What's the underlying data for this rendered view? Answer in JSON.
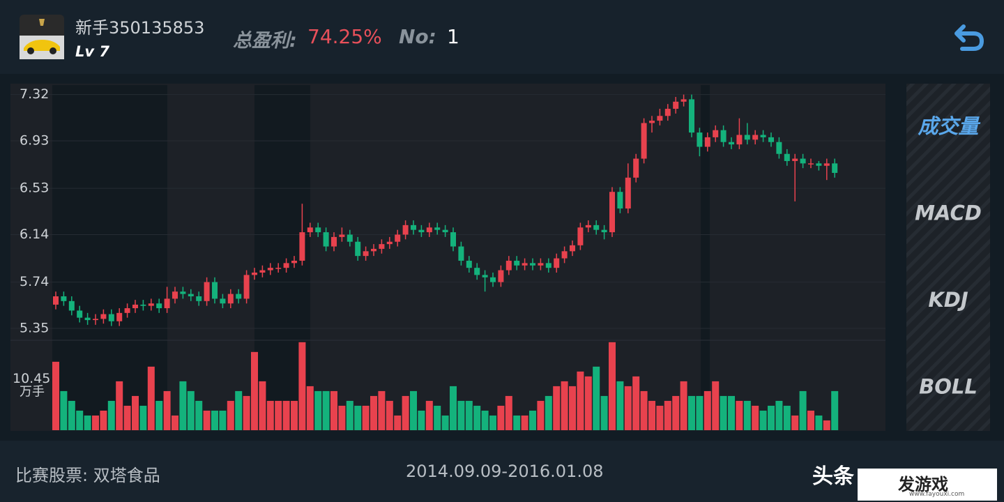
{
  "header": {
    "username": "新手350135853",
    "level": "Lv 7",
    "profit_label": "总盈利:",
    "profit_value": "74.25%",
    "no_label": "No:",
    "no_value": "1"
  },
  "side_tabs": [
    "成交量",
    "MACD",
    "KDJ",
    "BOLL"
  ],
  "footer": {
    "stock": "比赛股票: 双塔食品",
    "period": "2014.09.09-2016.01.08"
  },
  "watermark": {
    "source": "头条",
    "site": "发游戏",
    "url": "www.fayouxi.com"
  },
  "chart_data": {
    "type": "candlestick",
    "up_color": "#e8424e",
    "down_color": "#14b27c",
    "ylim": [
      5.25,
      7.4
    ],
    "yticks": [
      7.32,
      6.93,
      6.53,
      6.14,
      5.74,
      5.35
    ],
    "grid": true,
    "open": [
      5.55,
      5.62,
      5.58,
      5.5,
      5.44,
      5.42,
      5.43,
      5.47,
      5.41,
      5.48,
      5.52,
      5.55,
      5.54,
      5.56,
      5.52,
      5.6,
      5.66,
      5.64,
      5.62,
      5.58,
      5.74,
      5.6,
      5.56,
      5.64,
      5.6,
      5.8,
      5.82,
      5.84,
      5.86,
      5.86,
      5.9,
      5.92,
      6.16,
      6.2,
      6.16,
      6.04,
      6.12,
      6.14,
      6.08,
      5.96,
      6.0,
      6.02,
      6.06,
      6.08,
      6.14,
      6.22,
      6.18,
      6.16,
      6.2,
      6.18,
      6.16,
      6.04,
      5.92,
      5.86,
      5.8,
      5.78,
      5.74,
      5.84,
      5.92,
      5.88,
      5.9,
      5.88,
      5.9,
      5.86,
      5.94,
      6.0,
      6.05,
      6.2,
      6.22,
      6.18,
      6.16,
      6.5,
      6.36,
      6.62,
      6.78,
      7.08,
      7.1,
      7.14,
      7.2,
      7.26,
      7.28,
      7.0,
      6.88,
      6.96,
      7.02,
      6.92,
      6.9,
      6.98,
      6.94,
      6.98,
      6.96,
      6.92,
      6.82,
      6.76,
      6.78,
      6.74,
      6.74,
      6.72,
      6.74
    ],
    "high": [
      5.66,
      5.66,
      5.62,
      5.54,
      5.48,
      5.47,
      5.51,
      5.51,
      5.52,
      5.56,
      5.59,
      5.59,
      5.6,
      5.6,
      5.7,
      5.7,
      5.7,
      5.68,
      5.66,
      5.78,
      5.78,
      5.64,
      5.68,
      5.68,
      5.84,
      5.86,
      5.88,
      5.9,
      5.9,
      5.94,
      5.96,
      6.4,
      6.24,
      6.24,
      6.2,
      6.16,
      6.2,
      6.18,
      6.12,
      6.04,
      6.06,
      6.1,
      6.12,
      6.18,
      6.26,
      6.26,
      6.22,
      6.24,
      6.24,
      6.22,
      6.2,
      6.08,
      5.96,
      5.9,
      5.84,
      5.82,
      5.88,
      5.96,
      5.96,
      5.94,
      5.94,
      5.94,
      5.94,
      5.98,
      6.04,
      6.09,
      6.24,
      6.26,
      6.26,
      6.22,
      6.54,
      6.54,
      6.74,
      6.82,
      7.12,
      7.14,
      7.2,
      7.24,
      7.3,
      7.32,
      7.32,
      7.04,
      7.0,
      7.06,
      7.06,
      6.96,
      7.12,
      7.08,
      7.02,
      7.02,
      7.0,
      6.96,
      6.86,
      6.82,
      6.82,
      6.78,
      6.76,
      6.78,
      6.78
    ],
    "low": [
      5.51,
      5.54,
      5.46,
      5.4,
      5.38,
      5.38,
      5.39,
      5.37,
      5.37,
      5.44,
      5.48,
      5.5,
      5.5,
      5.48,
      5.48,
      5.56,
      5.6,
      5.58,
      5.54,
      5.54,
      5.56,
      5.52,
      5.52,
      5.56,
      5.56,
      5.76,
      5.78,
      5.8,
      5.82,
      5.82,
      5.86,
      5.88,
      6.12,
      6.12,
      6.0,
      6.0,
      6.08,
      6.04,
      5.92,
      5.92,
      5.96,
      5.98,
      6.02,
      6.04,
      6.1,
      6.14,
      6.12,
      6.12,
      6.14,
      6.12,
      6.0,
      5.88,
      5.82,
      5.76,
      5.66,
      5.7,
      5.7,
      5.8,
      5.84,
      5.84,
      5.84,
      5.84,
      5.82,
      5.82,
      5.9,
      5.96,
      6.01,
      6.16,
      6.14,
      6.1,
      6.12,
      6.32,
      6.32,
      6.58,
      6.74,
      7.0,
      7.06,
      7.1,
      7.16,
      7.22,
      6.96,
      6.8,
      6.84,
      6.92,
      6.88,
      6.86,
      6.86,
      6.9,
      6.9,
      6.92,
      6.88,
      6.78,
      6.72,
      6.42,
      6.7,
      6.7,
      6.68,
      6.6,
      6.62
    ],
    "close": [
      5.62,
      5.58,
      5.5,
      5.44,
      5.42,
      5.43,
      5.47,
      5.41,
      5.48,
      5.52,
      5.55,
      5.54,
      5.56,
      5.52,
      5.6,
      5.66,
      5.64,
      5.62,
      5.58,
      5.74,
      5.6,
      5.56,
      5.64,
      5.6,
      5.8,
      5.82,
      5.84,
      5.86,
      5.86,
      5.9,
      5.92,
      6.16,
      6.2,
      6.16,
      6.04,
      6.12,
      6.14,
      6.08,
      5.96,
      6.0,
      6.02,
      6.06,
      6.08,
      6.14,
      6.22,
      6.18,
      6.16,
      6.2,
      6.18,
      6.16,
      6.04,
      5.92,
      5.86,
      5.8,
      5.78,
      5.74,
      5.84,
      5.92,
      5.88,
      5.9,
      5.88,
      5.9,
      5.86,
      5.94,
      6.0,
      6.05,
      6.2,
      6.22,
      6.18,
      6.16,
      6.5,
      6.36,
      6.62,
      6.78,
      7.08,
      7.1,
      7.14,
      7.2,
      7.26,
      7.28,
      7.0,
      6.88,
      6.96,
      7.02,
      6.92,
      6.9,
      6.98,
      6.94,
      6.98,
      6.96,
      6.92,
      6.82,
      6.76,
      6.78,
      6.74,
      6.74,
      6.72,
      6.74,
      6.66
    ],
    "volume": [
      14,
      8,
      6,
      4,
      3,
      3,
      4,
      6,
      10,
      5,
      7,
      5,
      13,
      6,
      8,
      3,
      10,
      8,
      6,
      4,
      4,
      4,
      6,
      8,
      7,
      16,
      10,
      6,
      6,
      6,
      6,
      18,
      9,
      8,
      8,
      8,
      5,
      6,
      5,
      5,
      7,
      8,
      6,
      3,
      7,
      8,
      4,
      6,
      5,
      3,
      9,
      6,
      6,
      5,
      4,
      3,
      5,
      7,
      3,
      3,
      4,
      6,
      7,
      9,
      10,
      9,
      12,
      11,
      13,
      7,
      18,
      10,
      9,
      11,
      8,
      6,
      5,
      6,
      7,
      10,
      7,
      7,
      8,
      10,
      7,
      7,
      6,
      6,
      5,
      4,
      5,
      6,
      5,
      3,
      8,
      4,
      3,
      2,
      8
    ],
    "volume_ylim": [
      0,
      18.4
    ],
    "volume_yticks": [
      10.45
    ],
    "volume_unit": "万手"
  }
}
